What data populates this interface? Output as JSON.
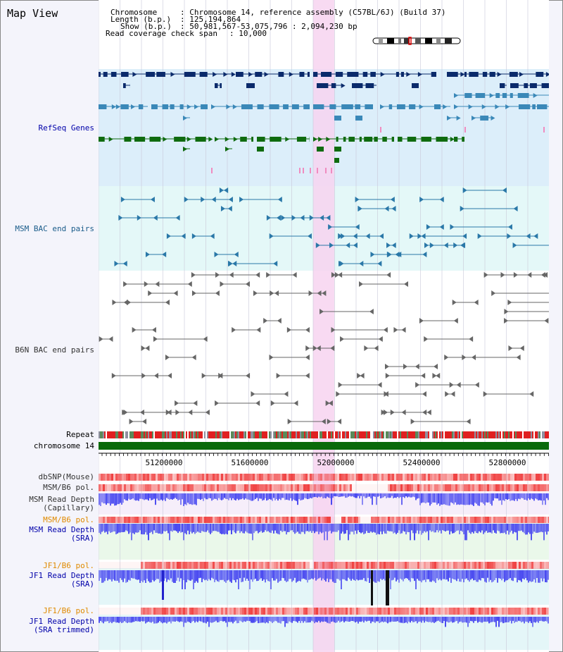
{
  "app_title": "Map View",
  "header": {
    "chromosome_key": "Chromosome",
    "chromosome_val": ": Chromosome 14, reference assembly (C57BL/6J) (Build 37)",
    "length_key": "Length (b.p.)",
    "length_val": ": 125,194,864",
    "show_key": "Show (b.p.)",
    "show_val": ": 50,981,567-53,075,796 : 2,094,230 bp",
    "span_key": "Read coverage check span",
    "span_val": ": 10,000"
  },
  "tracks": {
    "refseq": "RefSeq Genes",
    "msm_bac": "MSM BAC end pairs",
    "b6n_bac": "B6N BAC end pairs",
    "repeat": "Repeat",
    "chromosome": "chromosome 14",
    "dbsnp": "dbSNP(Mouse)",
    "msm_pol": "MSM/B6 pol.",
    "msm_depth_cap_1": "MSM Read Depth",
    "msm_depth_cap_2": "(Capillary)",
    "msm_pol2": "MSM/B6 pol.",
    "msm_depth_sra_1": "MSM Read Depth",
    "msm_depth_sra_2": "(SRA)",
    "jf1_pol": "JF1/B6 pol.",
    "jf1_depth_1": "JF1 Read Depth",
    "jf1_depth_2": "(SRA)",
    "jf1_pol2": "JF1/B6 pol.",
    "jf1_trim_1": "JF1 Read Depth",
    "jf1_trim_2": "(SRA trimmed)"
  },
  "axis": {
    "ticks": [
      "51200000",
      "51600000",
      "52000000",
      "52400000",
      "52800000"
    ]
  },
  "colors": {
    "refseq_bg": "#dceefa",
    "msm_bac_bg": "#e4f8f8",
    "highlight": "#f7d4f0",
    "navy": "#0a2a6b",
    "steel": "#3a88b8",
    "green": "#0f6b0f",
    "chromosome": "#0a6a0a",
    "repeat_red": "#e02020",
    "depth_blue": "#4848f0"
  }
}
